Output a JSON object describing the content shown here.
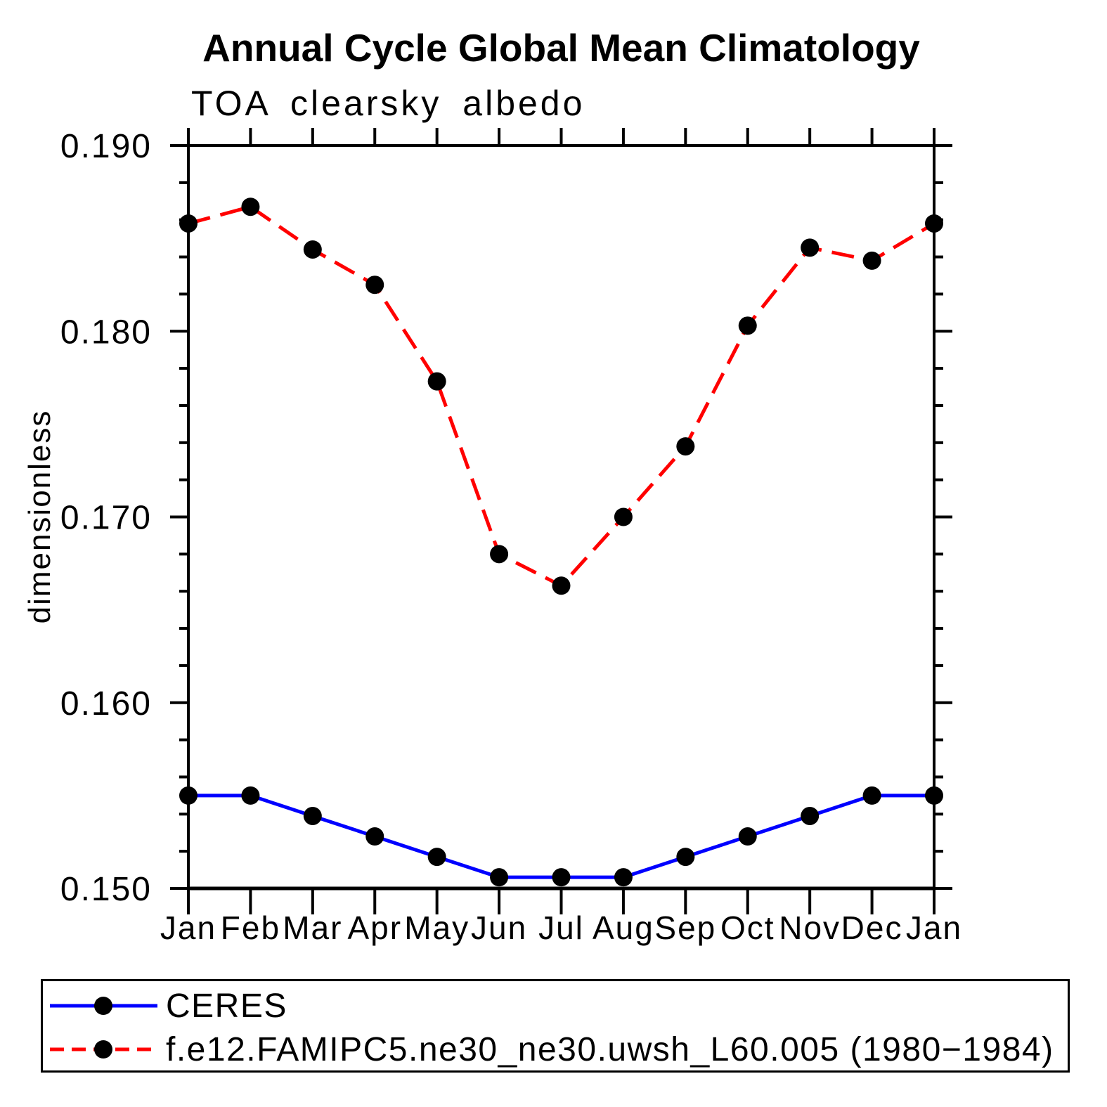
{
  "chart_data": {
    "type": "line",
    "title": "Annual Cycle Global Mean Climatology",
    "subtitle": "TOA clearsky albedo",
    "ylabel": "dimensionless",
    "xlabel": "",
    "categories": [
      "Jan",
      "Feb",
      "Mar",
      "Apr",
      "May",
      "Jun",
      "Jul",
      "Aug",
      "Sep",
      "Oct",
      "Nov",
      "Dec",
      "Jan"
    ],
    "ylim": [
      0.15,
      0.19
    ],
    "yticks": [
      0.15,
      0.16,
      0.17,
      0.18,
      0.19
    ],
    "ytick_labels": [
      "0.150",
      "0.160",
      "0.170",
      "0.180",
      "0.190"
    ],
    "minor_tick_step": 0.002,
    "grid": false,
    "legend_position": "bottom",
    "axis_color": "#000000",
    "marker_color": "#000000",
    "series": [
      {
        "name": "CERES",
        "color": "#0000ff",
        "style": "solid",
        "marker": "circle",
        "values": [
          0.155,
          0.155,
          0.1539,
          0.1528,
          0.1517,
          0.1506,
          0.1506,
          0.1506,
          0.1517,
          0.1528,
          0.1539,
          0.155,
          0.155
        ]
      },
      {
        "name": "f.e12.FAMIPC5.ne30_ne30.uwsh_L60.005 (1980−1984)",
        "color": "#ff0000",
        "style": "dashed",
        "marker": "circle",
        "values": [
          0.1858,
          0.1867,
          0.1844,
          0.1825,
          0.1773,
          0.168,
          0.1663,
          0.17,
          0.1738,
          0.1803,
          0.1845,
          0.1838,
          0.1858
        ]
      }
    ]
  }
}
